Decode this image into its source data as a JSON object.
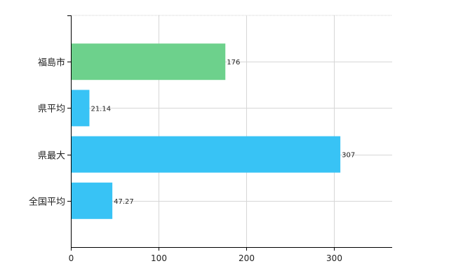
{
  "chart_data": {
    "type": "bar",
    "orientation": "horizontal",
    "categories": [
      "福島市",
      "県平均",
      "県最大",
      "全国平均"
    ],
    "values": [
      176,
      21.14,
      307,
      47.27
    ],
    "value_labels": [
      "176",
      "21.14",
      "307",
      "47.27"
    ],
    "colors": [
      "#6dd18c",
      "#38c3f5",
      "#38c3f5",
      "#38c3f5"
    ],
    "xlim": [
      0,
      366
    ],
    "xticks": [
      0,
      100,
      200,
      300
    ],
    "xtick_labels": [
      "0",
      "100",
      "200",
      "300"
    ],
    "title": "",
    "xlabel": "",
    "ylabel": "",
    "grid": true,
    "legend": "none"
  }
}
